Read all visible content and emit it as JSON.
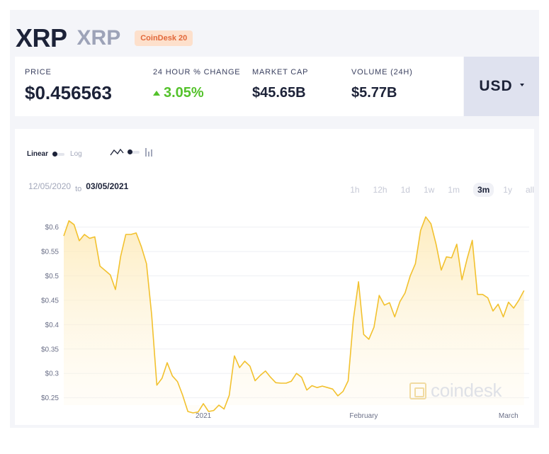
{
  "header": {
    "asset_name": "XRP",
    "asset_ticker": "XRP",
    "index_badge": "CoinDesk 20"
  },
  "stats": {
    "price_label": "PRICE",
    "price_value": "$0.456563",
    "change_label": "24 HOUR % CHANGE",
    "change_value": "3.05%",
    "mcap_label": "MARKET CAP",
    "mcap_value": "$45.65B",
    "volume_label": "VOLUME (24H)",
    "volume_value": "$5.77B"
  },
  "currency": {
    "label": "USD"
  },
  "controls": {
    "scale_linear": "Linear",
    "scale_log": "Log",
    "date_start": "12/05/2020",
    "date_to": "to",
    "date_end": "03/05/2021",
    "periods": [
      "1h",
      "12h",
      "1d",
      "1w",
      "1m",
      "3m",
      "1y",
      "all"
    ],
    "active_period": "3m"
  },
  "watermark": "coindesk",
  "colors": {
    "line": "#f2c12e",
    "positive": "#54c22b",
    "badge_bg": "#fde0cc",
    "badge_text": "#e2683a"
  },
  "chart_data": {
    "type": "area",
    "start": "2020-12-05",
    "end": "2021-03-05",
    "ylim": [
      0.235,
      0.63
    ],
    "yticks": [
      0.25,
      0.3,
      0.35,
      0.4,
      0.45,
      0.5,
      0.55,
      0.6
    ],
    "ytick_labels": [
      "$0.25",
      "$0.3",
      "$0.35",
      "$0.4",
      "$0.45",
      "$0.5",
      "$0.55",
      "$0.6"
    ],
    "xticks": [
      {
        "x": "2021-01-01",
        "label": "2021"
      },
      {
        "x": "2021-02-01",
        "label": "February"
      },
      {
        "x": "2021-03-01",
        "label": "March"
      }
    ],
    "grid": true,
    "points": [
      [
        "2020-12-05",
        0.582
      ],
      [
        "2020-12-06",
        0.613
      ],
      [
        "2020-12-07",
        0.605
      ],
      [
        "2020-12-08",
        0.572
      ],
      [
        "2020-12-09",
        0.585
      ],
      [
        "2020-12-10",
        0.577
      ],
      [
        "2020-12-11",
        0.58
      ],
      [
        "2020-12-12",
        0.52
      ],
      [
        "2020-12-13",
        0.511
      ],
      [
        "2020-12-14",
        0.502
      ],
      [
        "2020-12-15",
        0.472
      ],
      [
        "2020-12-16",
        0.54
      ],
      [
        "2020-12-17",
        0.585
      ],
      [
        "2020-12-18",
        0.585
      ],
      [
        "2020-12-19",
        0.588
      ],
      [
        "2020-12-20",
        0.56
      ],
      [
        "2020-12-21",
        0.525
      ],
      [
        "2020-12-22",
        0.42
      ],
      [
        "2020-12-23",
        0.276
      ],
      [
        "2020-12-24",
        0.29
      ],
      [
        "2020-12-25",
        0.322
      ],
      [
        "2020-12-26",
        0.295
      ],
      [
        "2020-12-27",
        0.283
      ],
      [
        "2020-12-28",
        0.255
      ],
      [
        "2020-12-29",
        0.222
      ],
      [
        "2020-12-30",
        0.219
      ],
      [
        "2020-12-31",
        0.221
      ],
      [
        "2021-01-01",
        0.238
      ],
      [
        "2021-01-02",
        0.222
      ],
      [
        "2021-01-03",
        0.224
      ],
      [
        "2021-01-04",
        0.235
      ],
      [
        "2021-01-05",
        0.227
      ],
      [
        "2021-01-06",
        0.255
      ],
      [
        "2021-01-07",
        0.336
      ],
      [
        "2021-01-08",
        0.312
      ],
      [
        "2021-01-09",
        0.325
      ],
      [
        "2021-01-10",
        0.315
      ],
      [
        "2021-01-11",
        0.285
      ],
      [
        "2021-01-12",
        0.296
      ],
      [
        "2021-01-13",
        0.305
      ],
      [
        "2021-01-14",
        0.292
      ],
      [
        "2021-01-15",
        0.281
      ],
      [
        "2021-01-16",
        0.28
      ],
      [
        "2021-01-17",
        0.28
      ],
      [
        "2021-01-18",
        0.284
      ],
      [
        "2021-01-19",
        0.3
      ],
      [
        "2021-01-20",
        0.292
      ],
      [
        "2021-01-21",
        0.266
      ],
      [
        "2021-01-22",
        0.275
      ],
      [
        "2021-01-23",
        0.271
      ],
      [
        "2021-01-24",
        0.274
      ],
      [
        "2021-01-25",
        0.271
      ],
      [
        "2021-01-26",
        0.268
      ],
      [
        "2021-01-27",
        0.254
      ],
      [
        "2021-01-28",
        0.263
      ],
      [
        "2021-01-29",
        0.285
      ],
      [
        "2021-01-30",
        0.41
      ],
      [
        "2021-01-31",
        0.488
      ],
      [
        "2021-02-01",
        0.38
      ],
      [
        "2021-02-02",
        0.37
      ],
      [
        "2021-02-03",
        0.395
      ],
      [
        "2021-02-04",
        0.46
      ],
      [
        "2021-02-05",
        0.44
      ],
      [
        "2021-02-06",
        0.445
      ],
      [
        "2021-02-07",
        0.416
      ],
      [
        "2021-02-08",
        0.447
      ],
      [
        "2021-02-09",
        0.465
      ],
      [
        "2021-02-10",
        0.5
      ],
      [
        "2021-02-11",
        0.525
      ],
      [
        "2021-02-12",
        0.593
      ],
      [
        "2021-02-13",
        0.621
      ],
      [
        "2021-02-14",
        0.607
      ],
      [
        "2021-02-15",
        0.565
      ],
      [
        "2021-02-16",
        0.512
      ],
      [
        "2021-02-17",
        0.539
      ],
      [
        "2021-02-18",
        0.537
      ],
      [
        "2021-02-19",
        0.565
      ],
      [
        "2021-02-20",
        0.492
      ],
      [
        "2021-02-21",
        0.535
      ],
      [
        "2021-02-22",
        0.573
      ],
      [
        "2021-02-23",
        0.462
      ],
      [
        "2021-02-24",
        0.462
      ],
      [
        "2021-02-25",
        0.455
      ],
      [
        "2021-02-26",
        0.428
      ],
      [
        "2021-02-27",
        0.442
      ],
      [
        "2021-02-28",
        0.416
      ],
      [
        "2021-03-01",
        0.446
      ],
      [
        "2021-03-02",
        0.434
      ],
      [
        "2021-03-03",
        0.45
      ],
      [
        "2021-03-04",
        0.47
      ]
    ]
  }
}
